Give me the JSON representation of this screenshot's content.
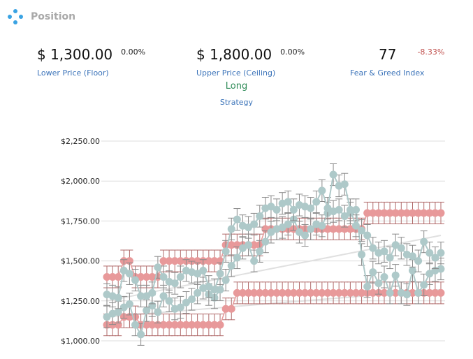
{
  "header": {
    "title": "Position",
    "icon": "four-dots-icon"
  },
  "metrics": {
    "floor": {
      "value": "$ 1,300.00",
      "change": "0.00%",
      "label": "Lower Price (Floor)"
    },
    "ceiling": {
      "value": "$ 1,800.00",
      "change": "0.00%",
      "label": "Upper Price (Ceiling)"
    },
    "fear_greed": {
      "value": "77",
      "change": "-8.33%",
      "label": "Fear & Greed Index"
    }
  },
  "strategy": {
    "value": "Long",
    "label": "Strategy"
  },
  "colors": {
    "price": "#aec9c9",
    "band": "#e8999a",
    "band_error": "#b06a6a",
    "price_error": "#8a8a8a",
    "trend": "#e0e0e0",
    "grid": "#dcdcdc",
    "label_blue": "#3b73b9",
    "long_green": "#2e8b57",
    "negative_red": "#c0504d"
  },
  "chart_data": {
    "type": "line",
    "y_ticks": [
      "$1,000.00",
      "$1,250.00",
      "$1,500.00",
      "$1,750.00",
      "$2,000.00",
      "$2,250.00"
    ],
    "ylim": [
      1000,
      2250
    ],
    "grid": true,
    "series": [
      {
        "values": [
          1100,
          1100,
          1100,
          1150,
          1150,
          1150,
          1100,
          1100,
          1100,
          1100,
          1100,
          1100,
          1100,
          1100,
          1100,
          1100,
          1100,
          1100,
          1100,
          1100,
          1100,
          1200,
          1200,
          1300,
          1300,
          1300,
          1300,
          1300,
          1300,
          1300,
          1300,
          1300,
          1300,
          1300,
          1300,
          1300,
          1300,
          1300,
          1300,
          1300,
          1300,
          1300,
          1300,
          1300,
          1300,
          1300,
          1300,
          1300,
          1300,
          1300,
          1300,
          1300,
          1300,
          1300,
          1300,
          1300,
          1300,
          1300,
          1300,
          1300
        ]
      },
      {
        "values": [
          1400,
          1400,
          1400,
          1500,
          1500,
          1400,
          1400,
          1400,
          1400,
          1400,
          1500,
          1500,
          1500,
          1500,
          1500,
          1500,
          1500,
          1500,
          1500,
          1500,
          1500,
          1600,
          1600,
          1600,
          1600,
          1600,
          1600,
          1600,
          1700,
          1700,
          1700,
          1700,
          1700,
          1700,
          1700,
          1700,
          1700,
          1700,
          1700,
          1700,
          1700,
          1700,
          1700,
          1700,
          1700,
          1700,
          1800,
          1800,
          1800,
          1800,
          1800,
          1800,
          1800,
          1800,
          1800,
          1800,
          1800,
          1800,
          1800,
          1800
        ]
      },
      {
        "values": [
          1150,
          1170,
          1180,
          1210,
          1230,
          1100,
          1040,
          1190,
          1220,
          1180,
          1280,
          1250,
          1200,
          1210,
          1240,
          1260,
          1300,
          1330,
          1290,
          1270,
          1320,
          1380,
          1470,
          1520,
          1580,
          1600,
          1500,
          1560,
          1620,
          1680,
          1700,
          1710,
          1730,
          1760,
          1680,
          1660,
          1700,
          1730,
          1720,
          1800,
          1810,
          1820,
          1780,
          1800,
          1820,
          1540,
          1340,
          1430,
          1360,
          1400,
          1300,
          1410,
          1300,
          1290,
          1440,
          1300,
          1350,
          1420,
          1440,
          1450
        ]
      },
      {
        "values": [
          1290,
          1280,
          1270,
          1440,
          1420,
          1380,
          1280,
          1280,
          1300,
          1460,
          1400,
          1370,
          1360,
          1400,
          1440,
          1430,
          1420,
          1440,
          1340,
          1320,
          1420,
          1560,
          1700,
          1760,
          1720,
          1710,
          1730,
          1780,
          1830,
          1840,
          1820,
          1860,
          1870,
          1820,
          1850,
          1840,
          1830,
          1870,
          1940,
          1830,
          2040,
          1970,
          1980,
          1820,
          1720,
          1690,
          1660,
          1580,
          1550,
          1560,
          1520,
          1600,
          1580,
          1540,
          1530,
          1500,
          1620,
          1550,
          1520,
          1550
        ]
      }
    ]
  }
}
